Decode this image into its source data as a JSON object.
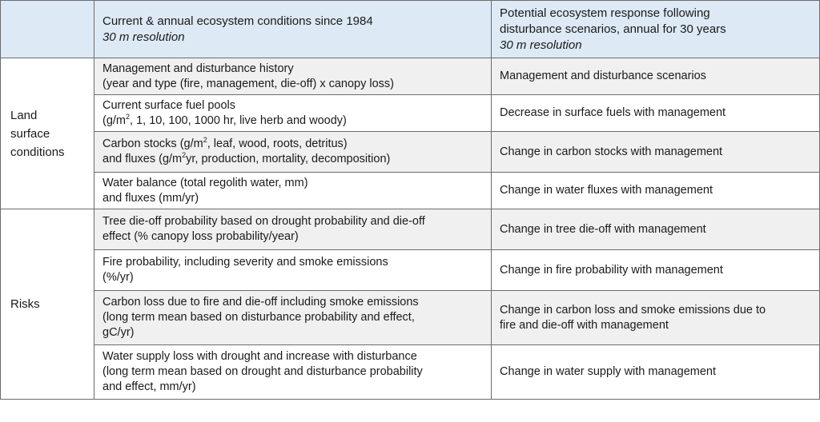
{
  "header": {
    "col2_title": "Current & annual ecosystem conditions since 1984",
    "col2_sub": "30 m resolution",
    "col3_title_line1": "Potential ecosystem response following",
    "col3_title_line2": "disturbance scenarios, annual for 30 years",
    "col3_sub": "30 m resolution"
  },
  "groups": {
    "land_line1": "Land",
    "land_line2": "surface",
    "land_line3": "conditions",
    "risks": "Risks"
  },
  "rows": [
    {
      "c2_line1": "Management and disturbance history",
      "c2_line2": "(year and type (fire, management, die-off) x canopy loss)",
      "c3": "Management and disturbance scenarios"
    },
    {
      "c2_line1": "Current surface fuel pools",
      "c2_line2_a": "(g/m",
      "c2_line2_sup": "2",
      "c2_line2_b": ", 1, 10, 100, 1000 hr, live herb and woody)",
      "c3": "Decrease in surface fuels with management"
    },
    {
      "c2_line1_a": "Carbon stocks (g/m",
      "c2_line1_sup": "2",
      "c2_line1_b": ", leaf, wood, roots, detritus)",
      "c2_line2_a": "and fluxes (g/m",
      "c2_line2_sup": "2",
      "c2_line2_b": "yr, production, mortality, decomposition)",
      "c3": "Change in carbon stocks with management"
    },
    {
      "c2_line1": "Water balance (total regolith water, mm)",
      "c2_line2": "and fluxes (mm/yr)",
      "c3": "Change in water fluxes with management"
    },
    {
      "c2_line1": "Tree die-off probability based on drought probability and die-off",
      "c2_line2": "effect (% canopy loss probability/year)",
      "c3": "Change in tree die-off with management"
    },
    {
      "c2_line1": "Fire probability, including severity and smoke emissions",
      "c2_line2": "(%/yr)",
      "c3": "Change in fire probability with management"
    },
    {
      "c2_line1": "Carbon loss due to fire and die-off including smoke emissions",
      "c2_line2": "(long term mean based on disturbance probability and effect,",
      "c2_line3": "gC/yr)",
      "c3_line1": "Change in carbon loss and smoke emissions due to",
      "c3_line2": "fire and die-off with management"
    },
    {
      "c2_line1": "Water supply loss with drought and increase with disturbance",
      "c2_line2": "(long term mean based on drought and disturbance probability",
      "c2_line3": "and effect, mm/yr)",
      "c3": "Change in water supply with management"
    }
  ]
}
